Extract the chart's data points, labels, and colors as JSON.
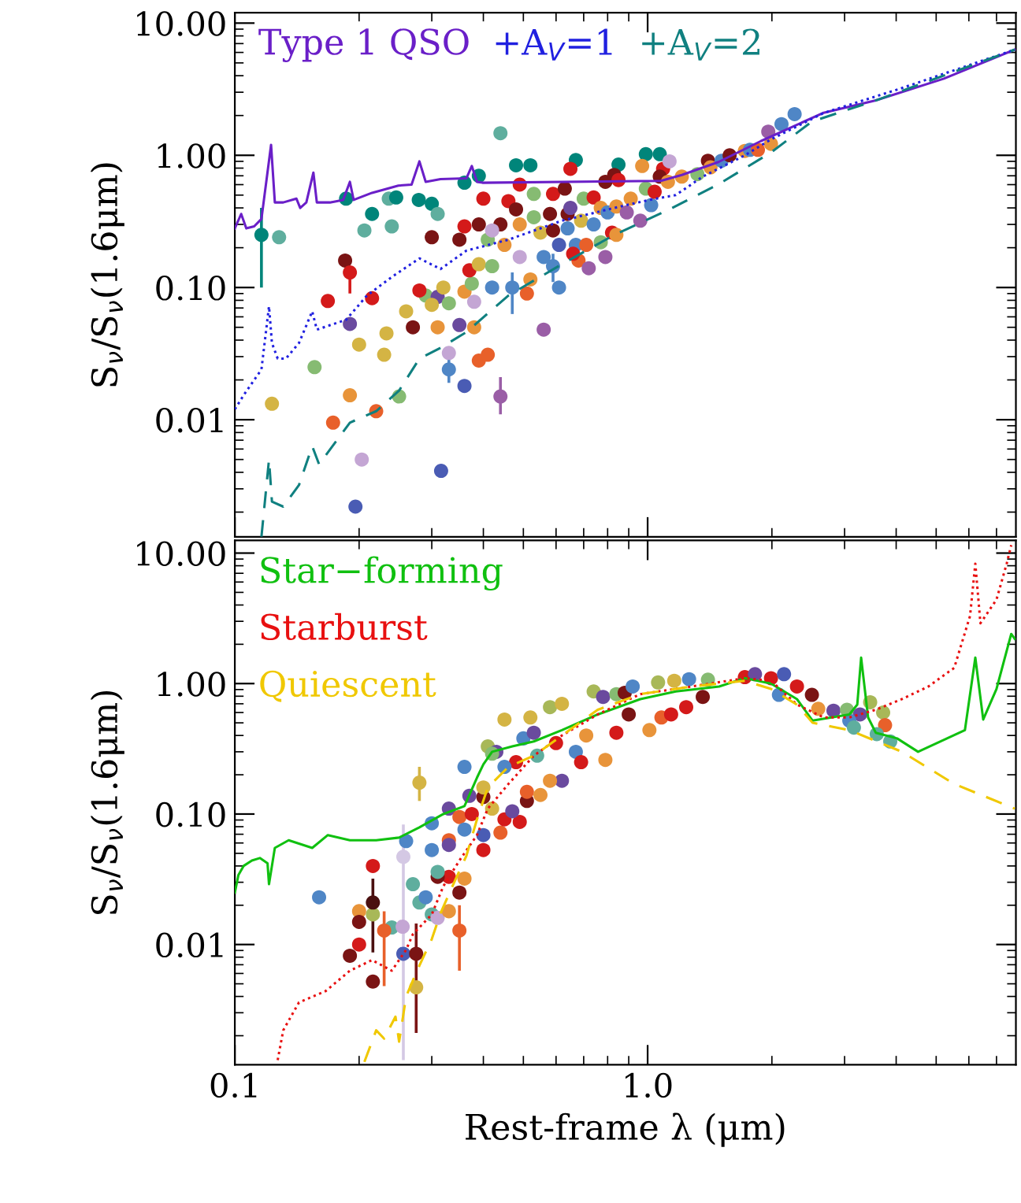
{
  "chart_data": [
    {
      "type": "scatter",
      "log": "xy",
      "legend": "top",
      "tick_labels": "y",
      "ylabel": "S$_{ν}$/S$_{ν}$(1.6μm)",
      "xlim": [
        0.1,
        7.8
      ],
      "ylim": [
        0.0013,
        12
      ],
      "yticks": [
        0.01,
        {
          "value": 0.1,
          "label": "0.10"
        },
        {
          "value": 1,
          "label": "1.00"
        },
        {
          "value": 10,
          "label": "10.00"
        }
      ],
      "series": [
        {
          "marker": "circle",
          "x": [
            0.128,
            0.186,
            0.206,
            0.215,
            0.236,
            0.246,
            0.24,
            0.279,
            0.3,
            0.31,
            0.36,
            0.39,
            0.44,
            0.48,
            0.52,
            0.67,
            0.85,
            0.99,
            1.07,
            0.185,
            0.168,
            0.215,
            0.19,
            0.156,
            0.123,
            0.19,
            0.173,
            0.203,
            0.196,
            0.316,
            0.2,
            0.233,
            0.23,
            0.25,
            0.22,
            0.33,
            0.36,
            0.39,
            0.41,
            0.56,
            0.35,
            0.38,
            0.31,
            0.27,
            0.26,
            0.29,
            0.28,
            0.31,
            0.3,
            0.32,
            0.36,
            0.33,
            0.38,
            0.375,
            0.37,
            0.39,
            0.42,
            0.41,
            0.35,
            0.3,
            0.36,
            0.39,
            0.44,
            0.4,
            0.46,
            0.49,
            0.48,
            0.53,
            0.53,
            0.49,
            0.42,
            0.45,
            0.49,
            0.42,
            0.52,
            0.51,
            0.56,
            0.61,
            0.61,
            0.67,
            0.68,
            0.66,
            0.72,
            0.79,
            0.71,
            0.77,
            0.82,
            0.84,
            0.55,
            0.59,
            0.64,
            0.69,
            0.74,
            0.58,
            0.64,
            0.65,
            0.59,
            0.63,
            0.7,
            0.74,
            0.77,
            0.8,
            0.84,
            0.89,
            0.91,
            0.96,
            1.02,
            0.99,
            1.04,
            0.79,
            0.83,
            0.85,
            0.65,
            0.97,
            1.09,
            1.13,
            1.07,
            1.12,
            1.21,
            1.32,
            1.4,
            1.42,
            1.51,
            1.58,
            1.72,
            1.77,
            1.85,
            1.99,
            1.96,
            2.11,
            2.27
          ],
          "values": [
            0.24,
            0.47,
            0.27,
            0.36,
            0.47,
            0.48,
            0.29,
            0.46,
            0.43,
            0.36,
            0.62,
            0.7,
            1.47,
            0.84,
            0.84,
            0.92,
            0.85,
            1.02,
            1.02,
            0.16,
            0.079,
            0.083,
            0.053,
            0.025,
            0.0132,
            0.0153,
            0.0095,
            0.005,
            0.0022,
            0.0041,
            0.037,
            0.045,
            0.031,
            0.015,
            0.0116,
            0.032,
            0.018,
            0.028,
            0.031,
            0.048,
            0.052,
            0.05,
            0.05,
            0.05,
            0.066,
            0.087,
            0.095,
            0.085,
            0.074,
            0.1,
            0.093,
            0.076,
            0.078,
            0.107,
            0.135,
            0.15,
            0.145,
            0.23,
            0.23,
            0.24,
            0.29,
            0.3,
            0.3,
            0.47,
            0.45,
            0.6,
            0.39,
            0.51,
            0.34,
            0.3,
            0.27,
            0.21,
            0.17,
            0.1,
            0.115,
            0.09,
            0.17,
            0.1,
            0.21,
            0.21,
            0.16,
            0.18,
            0.14,
            0.17,
            0.21,
            0.22,
            0.26,
            0.25,
            0.26,
            0.27,
            0.28,
            0.32,
            0.3,
            0.36,
            0.36,
            0.4,
            0.51,
            0.56,
            0.47,
            0.48,
            0.4,
            0.37,
            0.41,
            0.37,
            0.47,
            0.32,
            0.42,
            0.56,
            0.53,
            0.63,
            0.71,
            0.65,
            0.79,
            0.83,
            0.79,
            0.9,
            0.69,
            0.63,
            0.69,
            0.72,
            0.91,
            0.81,
            0.91,
            1.0,
            1.08,
            1.1,
            1.1,
            1.22,
            1.51,
            1.72,
            2.05
          ],
          "colors": [
            "#5fae9e",
            "#00857a",
            "#5fae9e",
            "#00857a",
            "#5fae9e",
            "#00857a",
            "#5fae9e",
            "#00857a",
            "#00857a",
            "#5fae9e",
            "#00857a",
            "#00857a",
            "#5fae9e",
            "#00857a",
            "#00857a",
            "#00857a",
            "#00857a",
            "#00857a",
            "#00857a",
            "#7a1414",
            "#d41a1a",
            "#d41a1a",
            "#6a4a9e",
            "#86bb72",
            "#d4b444",
            "#e8943a",
            "#e8602a",
            "#c4a6d4",
            "#4a5cb4",
            "#4a5cb4",
            "#d4b444",
            "#d4b444",
            "#d4b444",
            "#86bb72",
            "#e8602a",
            "#c4a6d4",
            "#4a5cb4",
            "#e8602a",
            "#e8602a",
            "#9a5ea6",
            "#6a4a9e",
            "#e8943a",
            "#e8943a",
            "#7a1414",
            "#d4b444",
            "#86bb72",
            "#d41a1a",
            "#6a4a9e",
            "#d4b444",
            "#d4b444",
            "#e8943a",
            "#86bb72",
            "#c4a6d4",
            "#86bb72",
            "#d41a1a",
            "#d4b444",
            "#86bb72",
            "#86bb72",
            "#7a1414",
            "#7a1414",
            "#d41a1a",
            "#7a1414",
            "#7a1414",
            "#d41a1a",
            "#d41a1a",
            "#d41a1a",
            "#7a1414",
            "#86bb72",
            "#86bb72",
            "#e8943a",
            "#c4a6d4",
            "#e8943a",
            "#c4a6d4",
            "#4f86c6",
            "#e8943a",
            "#e8602a",
            "#4f86c6",
            "#4f86c6",
            "#4a5cb4",
            "#4f86c6",
            "#e8602a",
            "#d41a1a",
            "#9a5ea6",
            "#9a5ea6",
            "#e8602a",
            "#86bb72",
            "#d41a1a",
            "#e8943a",
            "#d4b444",
            "#7a1414",
            "#4f86c6",
            "#d4b444",
            "#4f86c6",
            "#7a1414",
            "#7a1414",
            "#6a4a9e",
            "#d41a1a",
            "#7a1414",
            "#86bb72",
            "#d41a1a",
            "#e8943a",
            "#4f86c6",
            "#e8943a",
            "#9a5ea6",
            "#e8943a",
            "#9a5ea6",
            "#4f86c6",
            "#86bb72",
            "#d41a1a",
            "#7a1414",
            "#7a1414",
            "#d41a1a",
            "#d41a1a",
            "#e8943a",
            "#d41a1a",
            "#c4a6d4",
            "#7a1414",
            "#e8943a",
            "#e8943a",
            "#86bb72",
            "#7a1414",
            "#e8943a",
            "#4f86c6",
            "#7a1414",
            "#e8943a",
            "#4f86c6",
            "#e8602a",
            "#e8943a",
            "#9a5ea6",
            "#4f86c6",
            "#4f86c6"
          ]
        },
        {
          "marker": "circle",
          "x": [
            0.116,
            0.19,
            0.33,
            0.44,
            0.47,
            0.59
          ],
          "values": [
            0.25,
            0.13,
            0.024,
            0.015,
            0.1,
            0.145
          ],
          "colors": [
            "#00857a",
            "#d41a1a",
            "#4f86c6",
            "#9a5ea6",
            "#4f86c6",
            "#4f86c6"
          ],
          "errors": [
            [
              0.1,
              0.4
            ],
            [
              0.09,
              0.13
            ],
            [
              0.019,
              0.03
            ],
            [
              0.011,
              0.021
            ],
            [
              0.063,
              0.13
            ],
            [
              0.11,
              0.18
            ]
          ]
        },
        {
          "type": "line",
          "name": "Type 1 QSO",
          "color": "#6a1fc8",
          "line_style": "solid",
          "x": [
            0.1,
            0.1036,
            0.1066,
            0.1114,
            0.116,
            0.1224,
            0.125,
            0.131,
            0.141,
            0.144,
            0.149,
            0.155,
            0.158,
            0.17,
            0.183,
            0.19,
            0.194,
            0.215,
            0.249,
            0.268,
            0.28,
            0.29,
            0.315,
            0.364,
            0.375,
            0.386,
            0.398,
            1.076,
            1.21,
            1.485,
            1.88,
            2.67,
            3.57,
            5.22,
            7.75
          ],
          "values": [
            0.28,
            0.36,
            0.28,
            0.29,
            0.33,
            1.2,
            0.44,
            0.44,
            0.47,
            0.4,
            0.44,
            0.74,
            0.44,
            0.44,
            0.46,
            0.63,
            0.46,
            0.52,
            0.59,
            0.6,
            0.9,
            0.63,
            0.66,
            0.67,
            0.83,
            0.63,
            0.62,
            0.64,
            0.71,
            0.89,
            1.28,
            2.1,
            2.6,
            3.8,
            6.3
          ]
        },
        {
          "type": "line",
          "name": "+A$_{V}$=1",
          "color": "#2020e0",
          "line_style": "dotted",
          "x": [
            0.1,
            0.105,
            0.116,
            0.121,
            0.123,
            0.127,
            0.133,
            0.143,
            0.154,
            0.158,
            0.186,
            0.209,
            0.24,
            0.28,
            0.315,
            0.364,
            0.46,
            0.62,
            0.83,
            1.01,
            1.17,
            1.36,
            1.72,
            1.99,
            2.67,
            4.1,
            7.75
          ],
          "values": [
            0.012,
            0.0153,
            0.024,
            0.072,
            0.038,
            0.029,
            0.029,
            0.038,
            0.066,
            0.048,
            0.057,
            0.087,
            0.12,
            0.166,
            0.138,
            0.19,
            0.23,
            0.32,
            0.4,
            0.46,
            0.5,
            0.69,
            1.0,
            1.32,
            2.09,
            3.2,
            6.3
          ]
        },
        {
          "type": "line",
          "name": "+A$_{V}$=2",
          "color": "#108080",
          "line_style": "dashed",
          "x": [
            0.116,
            0.121,
            0.123,
            0.131,
            0.143,
            0.154,
            0.16,
            0.19,
            0.22,
            0.25,
            0.28,
            0.315,
            0.364,
            0.46,
            0.62,
            0.83,
            1.11,
            1.48,
            1.99,
            2.5,
            3.57,
            7.75
          ],
          "values": [
            0.0013,
            0.005,
            0.0024,
            0.0022,
            0.0032,
            0.0063,
            0.0046,
            0.0095,
            0.0116,
            0.0166,
            0.029,
            0.035,
            0.046,
            0.087,
            0.15,
            0.25,
            0.38,
            0.6,
            1.05,
            1.8,
            2.6,
            6.3
          ]
        }
      ]
    },
    {
      "type": "scatter",
      "log": "xy",
      "legend": "top left",
      "xlabel": "Rest-frame λ (μm)",
      "ylabel": "S$_{ν}$/S$_{ν}$(1.6μm)",
      "xlim": [
        0.1,
        7.8
      ],
      "ylim": [
        0.0012,
        12.5
      ],
      "xticks": [
        {
          "value": 0.1,
          "label": "0.1"
        },
        {
          "value": 1,
          "label": "1.0"
        }
      ],
      "yticks": [
        0.01,
        {
          "value": 0.1,
          "label": "0.10"
        },
        {
          "value": 1,
          "label": "1.00"
        },
        {
          "value": 10,
          "label": "10.00"
        }
      ],
      "series": [
        {
          "marker": "circle",
          "x": [
            0.16,
            0.216,
            0.216,
            0.2,
            0.2,
            0.2,
            0.19,
            0.216,
            0.24,
            0.255,
            0.256,
            0.275,
            0.26,
            0.27,
            0.28,
            0.29,
            0.3,
            0.31,
            0.33,
            0.35,
            0.33,
            0.31,
            0.31,
            0.36,
            0.3,
            0.3,
            0.33,
            0.33,
            0.33,
            0.35,
            0.36,
            0.36,
            0.37,
            0.375,
            0.4,
            0.4,
            0.4,
            0.42,
            0.44,
            0.45,
            0.49,
            0.47,
            0.51,
            0.51,
            0.55,
            0.41,
            0.43,
            0.45,
            0.5,
            0.53,
            0.58,
            0.52,
            0.62,
            0.74,
            0.78,
            0.84,
            0.88,
            0.92,
            1.06,
            1.16,
            1.26,
            1.4,
            1.72,
            1.82,
            1.99,
            2.08,
            2.3,
            2.5,
            2.59,
            2.82,
            3.04,
            3.27,
            3.46,
            3.08,
            3.16,
            3.72,
            3.76,
            3.59,
            3.87,
            1.08,
            1.01,
            1.14,
            1.24,
            1.36,
            0.67,
            0.71,
            0.79,
            0.69,
            0.62,
            0.58,
            0.84,
            0.9,
            0.6,
            0.54,
            0.48,
            0.45,
            0.42,
            0.4
          ],
          "values": [
            0.023,
            0.04,
            0.017,
            0.018,
            0.0149,
            0.01,
            0.0082,
            0.0052,
            0.0135,
            0.0137,
            0.0085,
            0.0047,
            0.062,
            0.029,
            0.021,
            0.023,
            0.017,
            0.016,
            0.018,
            0.025,
            0.033,
            0.033,
            0.036,
            0.032,
            0.053,
            0.085,
            0.063,
            0.058,
            0.11,
            0.095,
            0.076,
            0.23,
            0.138,
            0.1,
            0.135,
            0.053,
            0.069,
            0.11,
            0.072,
            0.091,
            0.087,
            0.105,
            0.126,
            0.148,
            0.14,
            0.33,
            0.3,
            0.53,
            0.38,
            0.42,
            0.66,
            0.55,
            0.7,
            0.87,
            0.79,
            0.83,
            0.85,
            0.95,
            1.02,
            1.05,
            1.08,
            1.07,
            1.12,
            1.18,
            1.1,
            0.82,
            0.95,
            0.82,
            0.64,
            0.62,
            0.63,
            0.58,
            0.72,
            0.52,
            0.46,
            0.6,
            0.48,
            0.41,
            0.36,
            0.55,
            0.44,
            0.58,
            0.66,
            0.79,
            0.3,
            0.4,
            0.26,
            0.25,
            0.18,
            0.18,
            0.42,
            0.58,
            0.35,
            0.28,
            0.25,
            0.23,
            0.29,
            0.16
          ],
          "colors": [
            "#4f86c6",
            "#d41a1a",
            "#a8b858",
            "#e8943a",
            "#7a1414",
            "#d41a1a",
            "#7a1414",
            "#7a1414",
            "#5fae9e",
            "#c4a6d4",
            "#4a5cb4",
            "#d4b444",
            "#4f86c6",
            "#5fae9e",
            "#5fae9e",
            "#4f86c6",
            "#5fae9e",
            "#c4a6d4",
            "#e8943a",
            "#7a1414",
            "#d41a1a",
            "#7a1414",
            "#5fae9e",
            "#e8943a",
            "#4f86c6",
            "#4f86c6",
            "#e8602a",
            "#6a4a9e",
            "#6a4a9e",
            "#e8602a",
            "#4f86c6",
            "#4f86c6",
            "#6a4a9e",
            "#d41a1a",
            "#7a1414",
            "#d41a1a",
            "#4a5cb4",
            "#d4b444",
            "#e8602a",
            "#d41a1a",
            "#d41a1a",
            "#6a4a9e",
            "#7a1414",
            "#e8602a",
            "#e8943a",
            "#a8b858",
            "#6a4a9e",
            "#d4b444",
            "#4f86c6",
            "#6a4a9e",
            "#a8b858",
            "#d4b444",
            "#d4b444",
            "#a8b858",
            "#6a4a9e",
            "#86bb72",
            "#7a1414",
            "#4f86c6",
            "#a8b858",
            "#d4b444",
            "#4f86c6",
            "#86bb72",
            "#d41a1a",
            "#6a4a9e",
            "#d41a1a",
            "#4f86c6",
            "#d41a1a",
            "#7a1414",
            "#e8943a",
            "#6a4a9e",
            "#86bb72",
            "#6a4a9e",
            "#a8b858",
            "#4f86c6",
            "#5fae9e",
            "#a8b858",
            "#e8602a",
            "#5fae9e",
            "#5fae9e",
            "#e8602a",
            "#e8943a",
            "#d41a1a",
            "#d41a1a",
            "#7a1414",
            "#4f86c6",
            "#e8943a",
            "#e8943a",
            "#d41a1a",
            "#6a4a9e",
            "#e8943a",
            "#d41a1a",
            "#7a1414",
            "#d41a1a",
            "#5fae9e",
            "#d41a1a",
            "#4f86c6",
            "#86bb72",
            "#d4b444"
          ]
        },
        {
          "marker": "circle",
          "x": [
            0.216,
            0.23,
            0.256,
            0.275,
            0.28,
            0.35,
            2.14
          ],
          "values": [
            0.021,
            0.0128,
            0.047,
            0.0085,
            0.174,
            0.0128,
            1.18
          ],
          "colors": [
            "#4a1010",
            "#e8602a",
            "#d4c8e4",
            "#7a1414",
            "#d4b444",
            "#e8602a",
            "#4a5cb4"
          ],
          "errors": [
            [
              0.0087,
              0.032
            ],
            [
              0.0048,
              0.018
            ],
            [
              0.0013,
              0.083
            ],
            [
              0.0021,
              0.0145
            ],
            [
              0.126,
              0.23
            ],
            [
              0.0063,
              0.02
            ],
            [
              1.05,
              1.32
            ]
          ]
        },
        {
          "type": "line",
          "name": "Star−forming",
          "color": "#10c010",
          "line_style": "solid",
          "x": [
            0.1,
            0.102,
            0.105,
            0.11,
            0.115,
            0.12,
            0.121,
            0.125,
            0.135,
            0.154,
            0.168,
            0.19,
            0.22,
            0.25,
            0.28,
            0.32,
            0.36,
            0.386,
            0.4,
            0.42,
            0.47,
            0.53,
            0.62,
            0.757,
            0.96,
            1.17,
            1.49,
            1.72,
            1.99,
            2.3,
            2.51,
            3.08,
            3.22,
            3.29,
            3.42,
            3.57,
            4.02,
            4.52,
            5.87,
            6.22,
            6.5,
            7.0,
            7.6,
            7.75
          ],
          "values": [
            0.025,
            0.034,
            0.04,
            0.044,
            0.046,
            0.042,
            0.029,
            0.055,
            0.063,
            0.055,
            0.069,
            0.063,
            0.063,
            0.066,
            0.079,
            0.1,
            0.115,
            0.19,
            0.24,
            0.3,
            0.33,
            0.36,
            0.44,
            0.58,
            0.76,
            0.87,
            0.95,
            1.1,
            1.0,
            0.76,
            0.52,
            0.58,
            0.69,
            1.58,
            0.55,
            0.42,
            0.38,
            0.3,
            0.44,
            1.58,
            0.53,
            0.91,
            2.4,
            2.2
          ]
        },
        {
          "type": "line",
          "name": "Starburst",
          "color": "#e81010",
          "line_style": "dotted",
          "x": [
            0.127,
            0.131,
            0.143,
            0.166,
            0.19,
            0.215,
            0.24,
            0.26,
            0.27,
            0.3,
            0.32,
            0.35,
            0.386,
            0.41,
            0.46,
            0.53,
            0.62,
            0.757,
            0.96,
            1.28,
            1.72,
            1.99,
            2.3,
            2.67,
            3.08,
            3.57,
            4.13,
            4.79,
            5.53,
            6.04,
            6.22,
            6.4,
            7.0,
            7.41,
            7.6
          ],
          "values": [
            0.0013,
            0.0022,
            0.0036,
            0.0044,
            0.0063,
            0.0076,
            0.0063,
            0.0091,
            0.012,
            0.017,
            0.028,
            0.044,
            0.069,
            0.11,
            0.17,
            0.28,
            0.4,
            0.58,
            0.83,
            0.95,
            1.1,
            1.05,
            0.69,
            0.55,
            0.55,
            0.63,
            0.76,
            0.95,
            1.32,
            3.3,
            8.3,
            2.9,
            4.4,
            8.3,
            11.5
          ]
        },
        {
          "type": "line",
          "name": "Quiescent",
          "color": "#f0c800",
          "line_style": "dashed",
          "x": [
            0.206,
            0.22,
            0.23,
            0.245,
            0.25,
            0.26,
            0.27,
            0.28,
            0.3,
            0.315,
            0.34,
            0.364,
            0.386,
            0.41,
            0.46,
            0.53,
            0.62,
            0.757,
            0.96,
            1.28,
            1.72,
            1.99,
            2.3,
            2.51,
            3.08,
            4.13,
            5.53,
            7.75
          ],
          "values": [
            0.00126,
            0.0022,
            0.0019,
            0.0028,
            0.0018,
            0.004,
            0.0053,
            0.0069,
            0.011,
            0.0174,
            0.03,
            0.048,
            0.091,
            0.16,
            0.23,
            0.28,
            0.4,
            0.63,
            0.83,
            0.95,
            1.05,
            0.91,
            0.69,
            0.5,
            0.44,
            0.3,
            0.17,
            0.11
          ]
        }
      ]
    }
  ]
}
